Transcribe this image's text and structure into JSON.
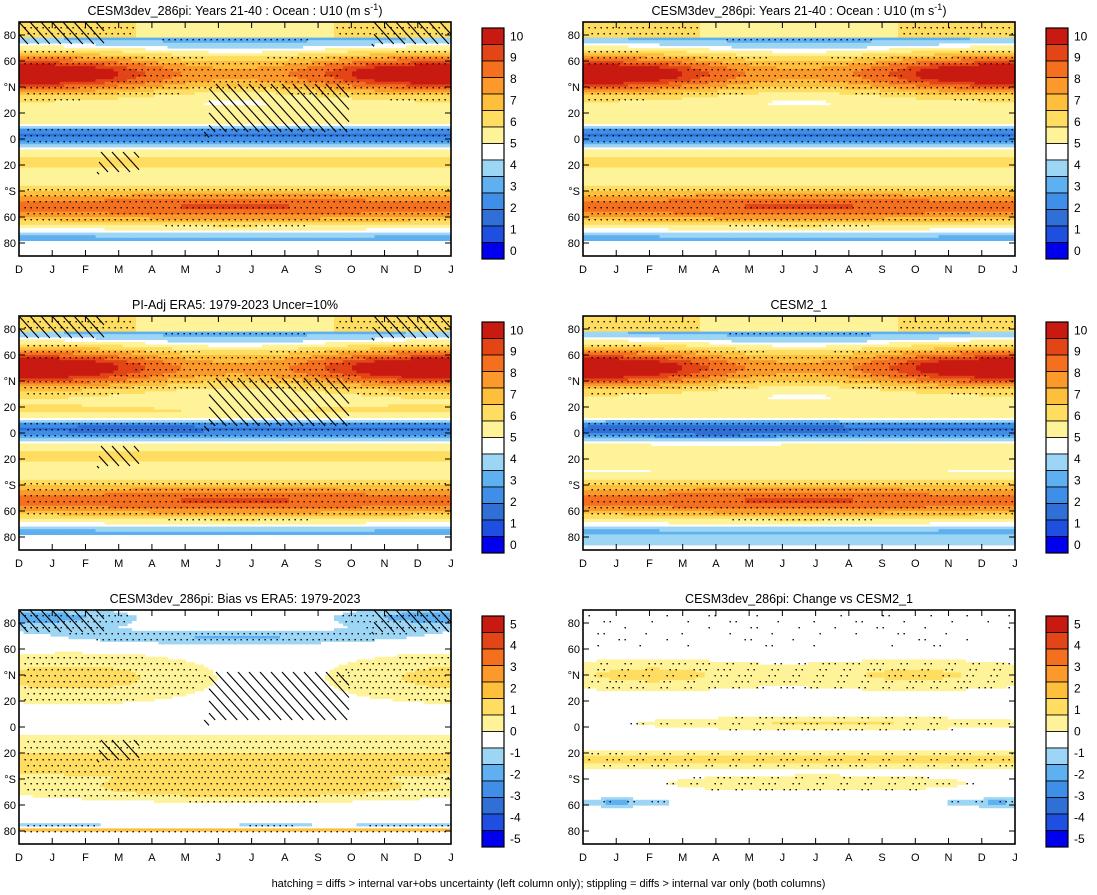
{
  "footnote": "hatching = diffs > internal var+obs uncertainty (left column only); stippling = diffs > internal var only (both columns)",
  "colors": {
    "field_scale": [
      "#0000ee",
      "#1f4fe0",
      "#2f6fd6",
      "#3f8fe8",
      "#5fb0f0",
      "#9cd6f4",
      "#ffffff",
      "#fff39a",
      "#fedd60",
      "#fdbf3c",
      "#fb9a2a",
      "#f4701e",
      "#e34516",
      "#c91a12"
    ],
    "diff_scale": [
      "#0000ee",
      "#1f4fe0",
      "#2f6fd6",
      "#3f8fe8",
      "#5fb0f0",
      "#9cd6f4",
      "#ffffff",
      "#fff39a",
      "#fedd60",
      "#fdbf3c",
      "#fb9a2a",
      "#f4701e",
      "#e34516",
      "#c91a12"
    ]
  },
  "chart_data": [
    {
      "type": "heatmap",
      "title": "CESM3dev_286pi: Years 21-40 : Ocean : U10 (m s",
      "title_sup": "-1",
      "title_end": ")",
      "x_ticks": [
        "D",
        "J",
        "F",
        "M",
        "A",
        "M",
        "J",
        "J",
        "A",
        "S",
        "O",
        "N",
        "D",
        "J"
      ],
      "y_ticks": [
        "80",
        "60",
        "°N",
        "20",
        "0",
        "20",
        "°S",
        "60",
        "80"
      ],
      "y_range": [
        -90,
        90
      ],
      "colorbar_labels": [
        "10",
        "9",
        "8",
        "7",
        "6",
        "5",
        "4",
        "3",
        "2",
        "1",
        "0"
      ],
      "field": "u10_model",
      "hatching": true,
      "stippling": "dense"
    },
    {
      "type": "heatmap",
      "title": "CESM3dev_286pi: Years 21-40 : Ocean : U10 (m s",
      "title_sup": "-1",
      "title_end": ")",
      "x_ticks": [
        "D",
        "J",
        "F",
        "M",
        "A",
        "M",
        "J",
        "J",
        "A",
        "S",
        "O",
        "N",
        "D",
        "J"
      ],
      "y_ticks": [
        "80",
        "60",
        "°N",
        "20",
        "0",
        "20",
        "°S",
        "60",
        "80"
      ],
      "y_range": [
        -90,
        90
      ],
      "colorbar_labels": [
        "10",
        "9",
        "8",
        "7",
        "6",
        "5",
        "4",
        "3",
        "2",
        "1",
        "0"
      ],
      "field": "u10_model",
      "hatching": false,
      "stippling": "dense"
    },
    {
      "type": "heatmap",
      "title": "PI-Adj ERA5: 1979-2023 Uncer=10%",
      "x_ticks": [
        "D",
        "J",
        "F",
        "M",
        "A",
        "M",
        "J",
        "J",
        "A",
        "S",
        "O",
        "N",
        "D",
        "J"
      ],
      "y_ticks": [
        "80",
        "60",
        "°N",
        "20",
        "0",
        "20",
        "°S",
        "60",
        "80"
      ],
      "y_range": [
        -90,
        90
      ],
      "colorbar_labels": [
        "10",
        "9",
        "8",
        "7",
        "6",
        "5",
        "4",
        "3",
        "2",
        "1",
        "0"
      ],
      "field": "u10_obs",
      "hatching": true,
      "stippling": "dense"
    },
    {
      "type": "heatmap",
      "title": "CESM2_1",
      "x_ticks": [
        "D",
        "J",
        "F",
        "M",
        "A",
        "M",
        "J",
        "J",
        "A",
        "S",
        "O",
        "N",
        "D",
        "J"
      ],
      "y_ticks": [
        "80",
        "60",
        "°N",
        "20",
        "0",
        "20",
        "°S",
        "60",
        "80"
      ],
      "y_range": [
        -90,
        90
      ],
      "colorbar_labels": [
        "10",
        "9",
        "8",
        "7",
        "6",
        "5",
        "4",
        "3",
        "2",
        "1",
        "0"
      ],
      "field": "u10_cesm2",
      "hatching": false,
      "stippling": "dense"
    },
    {
      "type": "heatmap",
      "title": "CESM3dev_286pi: Bias vs ERA5: 1979-2023",
      "x_ticks": [
        "D",
        "J",
        "F",
        "M",
        "A",
        "M",
        "J",
        "J",
        "A",
        "S",
        "O",
        "N",
        "D",
        "J"
      ],
      "y_ticks": [
        "80",
        "60",
        "°N",
        "20",
        "0",
        "20",
        "°S",
        "60",
        "80"
      ],
      "y_range": [
        -90,
        90
      ],
      "colorbar_labels": [
        "5",
        "4",
        "3",
        "2",
        "1",
        "0",
        "-1",
        "-2",
        "-3",
        "-4",
        "-5"
      ],
      "field": "bias",
      "hatching": true,
      "stippling": "dense"
    },
    {
      "type": "heatmap",
      "title": "CESM3dev_286pi: Change vs CESM2_1",
      "x_ticks": [
        "D",
        "J",
        "F",
        "M",
        "A",
        "M",
        "J",
        "J",
        "A",
        "S",
        "O",
        "N",
        "D",
        "J"
      ],
      "y_ticks": [
        "80",
        "60",
        "°N",
        "20",
        "0",
        "20",
        "°S",
        "60",
        "80"
      ],
      "y_range": [
        -90,
        90
      ],
      "colorbar_labels": [
        "5",
        "4",
        "3",
        "2",
        "1",
        "0",
        "-1",
        "-2",
        "-3",
        "-4",
        "-5"
      ],
      "field": "change",
      "hatching": false,
      "stippling": "sparse"
    }
  ]
}
